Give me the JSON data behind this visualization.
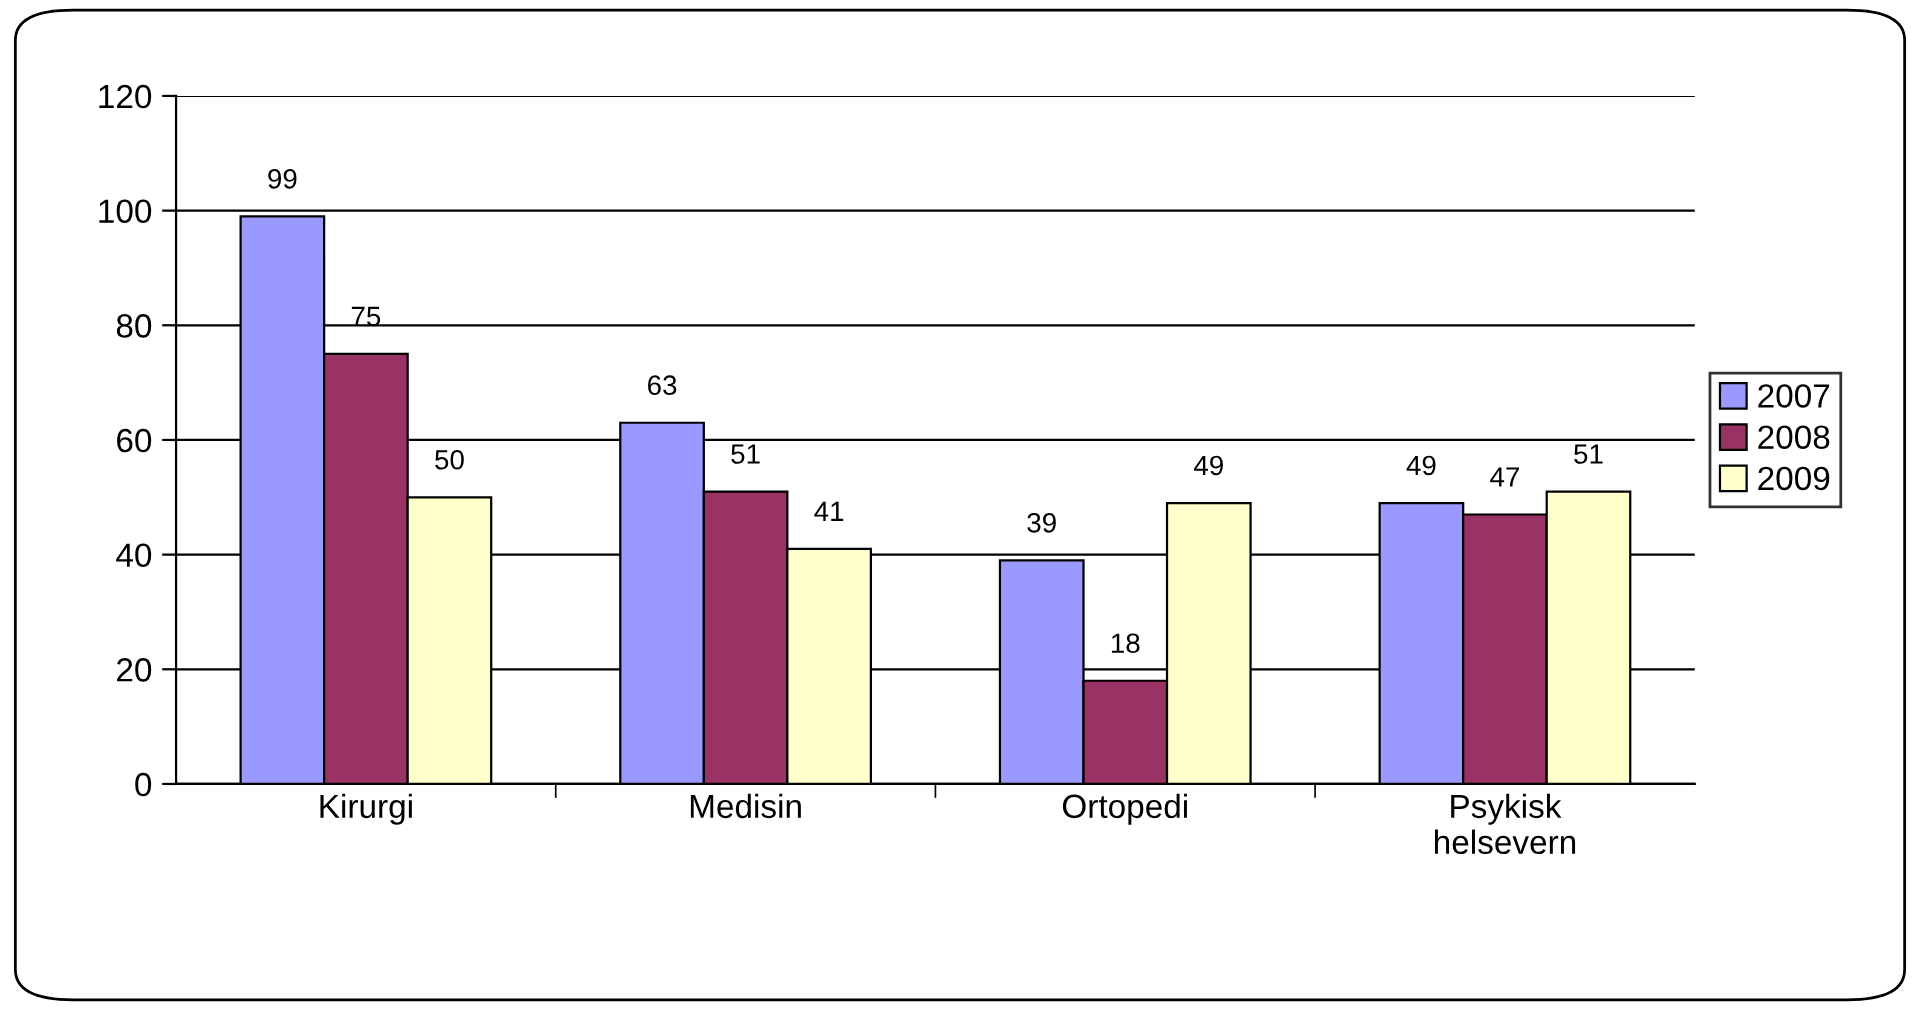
{
  "chart_data": {
    "type": "bar",
    "categories": [
      "Kirurgi",
      "Medisin",
      "Ortopedi",
      "Psykisk\nhelsevern"
    ],
    "series": [
      {
        "name": "2007",
        "color": "#9999ff",
        "values": [
          99,
          63,
          39,
          49
        ]
      },
      {
        "name": "2008",
        "color": "#993366",
        "values": [
          75,
          51,
          18,
          47
        ]
      },
      {
        "name": "2009",
        "color": "#ffffcc",
        "values": [
          50,
          41,
          49,
          51
        ]
      }
    ],
    "ylim": [
      0,
      120
    ],
    "yticks": [
      0,
      20,
      40,
      60,
      80,
      100,
      120
    ],
    "grid": "y",
    "legend": "right",
    "data_labels": true
  }
}
